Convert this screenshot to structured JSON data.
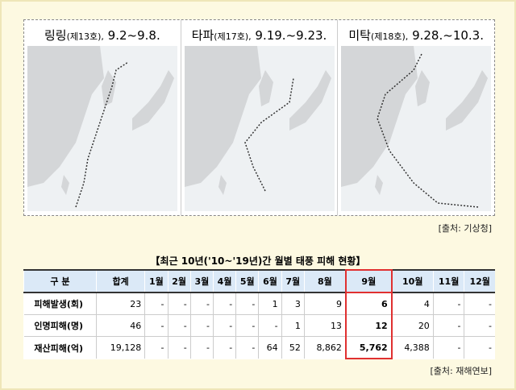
{
  "maps": [
    {
      "name": "링링",
      "number": "(제13호),",
      "period": "9.2~9.8."
    },
    {
      "name": "타파",
      "number": "(제17호),",
      "period": "9.19.~9.23."
    },
    {
      "name": "미탁",
      "number": "(제18호),",
      "period": "9.28.~10.3."
    }
  ],
  "maps_source": "[출처: 기상청]",
  "table": {
    "title": "【최근 10년('10~'19년)간 월별 태풍 피해 현황】",
    "header": [
      "구 분",
      "합계",
      "1월",
      "2월",
      "3월",
      "4월",
      "5월",
      "6월",
      "7월",
      "8월",
      "9월",
      "10월",
      "11월",
      "12월"
    ],
    "rows": [
      [
        "피해발생(회)",
        "23",
        "-",
        "-",
        "-",
        "-",
        "-",
        "1",
        "3",
        "9",
        "6",
        "4",
        "-",
        "-"
      ],
      [
        "인명피해(명)",
        "46",
        "-",
        "-",
        "-",
        "-",
        "-",
        "-",
        "1",
        "13",
        "12",
        "20",
        "-",
        "-"
      ],
      [
        "재산피해(억)",
        "19,128",
        "-",
        "-",
        "-",
        "-",
        "-",
        "64",
        "52",
        "8,862",
        "5,762",
        "4,388",
        "-",
        "-"
      ]
    ],
    "source": "[출처: 재해연보]"
  }
}
